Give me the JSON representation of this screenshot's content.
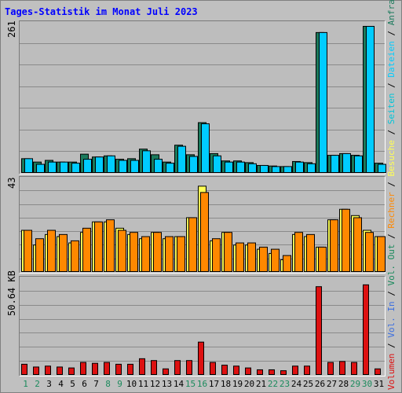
{
  "title": "Tages-Statistik im Monat Juli 2023",
  "colors": {
    "anfragen": "#1a7a5c",
    "dateien": "#00ccff",
    "seiten": "#00c6d9",
    "besuche": "#ffff55",
    "rechner": "#ff8800",
    "vol_in": "#3a6ee0",
    "vol_out": "#1a8a5c",
    "volumen": "#dd1111",
    "weekend_label": "#1a8a5c",
    "weekday_label": "#000000"
  },
  "legend": {
    "top_series": [
      "Anfragen",
      "Dateien",
      "Seiten",
      "Besuche",
      "Rechner",
      "Vol. Out",
      "Vol. In",
      "Volumen"
    ],
    "separators": "/"
  },
  "chart_data": [
    {
      "type": "bar",
      "panel": "hits",
      "ymax_label": "261",
      "ylim": [
        0,
        261
      ],
      "grid": true,
      "categories": [
        "1",
        "2",
        "3",
        "4",
        "5",
        "6",
        "7",
        "8",
        "9",
        "10",
        "11",
        "12",
        "13",
        "14",
        "15",
        "16",
        "17",
        "18",
        "19",
        "20",
        "21",
        "22",
        "23",
        "24",
        "25",
        "26",
        "27",
        "28",
        "29",
        "30",
        "31"
      ],
      "weekend_days": [
        "1",
        "2",
        "8",
        "9",
        "15",
        "16",
        "22",
        "23",
        "29",
        "30"
      ],
      "series": [
        {
          "name": "Anfragen",
          "values": [
            26,
            20,
            23,
            20,
            20,
            34,
            29,
            31,
            25,
            26,
            43,
            33,
            20,
            50,
            33,
            90,
            35,
            22,
            22,
            19,
            14,
            13,
            12,
            21,
            19,
            250,
            32,
            35,
            32,
            261,
            18
          ]
        },
        {
          "name": "Dateien",
          "values": [
            26,
            16,
            20,
            20,
            18,
            25,
            29,
            31,
            23,
            23,
            40,
            25,
            18,
            48,
            30,
            88,
            31,
            20,
            20,
            17,
            14,
            12,
            12,
            20,
            17,
            250,
            32,
            35,
            31,
            261,
            16
          ]
        }
      ]
    },
    {
      "type": "bar",
      "panel": "visits",
      "ymax_label": "43",
      "ylim": [
        0,
        43
      ],
      "grid": true,
      "categories": [
        "1",
        "2",
        "3",
        "4",
        "5",
        "6",
        "7",
        "8",
        "9",
        "10",
        "11",
        "12",
        "13",
        "14",
        "15",
        "16",
        "17",
        "18",
        "19",
        "20",
        "21",
        "22",
        "23",
        "24",
        "25",
        "26",
        "27",
        "28",
        "29",
        "30",
        "31"
      ],
      "series": [
        {
          "name": "Besuche",
          "values": [
            20,
            13,
            18,
            17,
            14,
            19,
            24,
            24,
            21,
            18,
            16,
            19,
            16,
            17,
            26,
            41,
            15,
            19,
            13,
            13,
            11,
            9,
            6,
            18,
            17,
            12,
            25,
            30,
            27,
            20,
            17
          ]
        },
        {
          "name": "Rechner",
          "values": [
            20,
            16,
            20,
            18,
            15,
            21,
            24,
            25,
            20,
            19,
            17,
            19,
            17,
            17,
            26,
            38,
            16,
            19,
            14,
            14,
            12,
            11,
            8,
            19,
            18,
            12,
            25,
            30,
            26,
            19,
            17
          ]
        }
      ]
    },
    {
      "type": "bar",
      "panel": "volume",
      "ymax_label": "50.64 KB",
      "ylim": [
        0,
        50.64
      ],
      "grid": true,
      "categories": [
        "1",
        "2",
        "3",
        "4",
        "5",
        "6",
        "7",
        "8",
        "9",
        "10",
        "11",
        "12",
        "13",
        "14",
        "15",
        "16",
        "17",
        "18",
        "19",
        "20",
        "21",
        "22",
        "23",
        "24",
        "25",
        "26",
        "27",
        "28",
        "29",
        "30",
        "31"
      ],
      "series": [
        {
          "name": "Volumen",
          "values": [
            6,
            4.5,
            5,
            4.5,
            4,
            7,
            6.5,
            7,
            6,
            6,
            9,
            8,
            3.5,
            8,
            8,
            18,
            7,
            5.5,
            5,
            4,
            3,
            3,
            2.5,
            5,
            5,
            48,
            7,
            7.5,
            7,
            49,
            3.5
          ]
        }
      ]
    }
  ]
}
